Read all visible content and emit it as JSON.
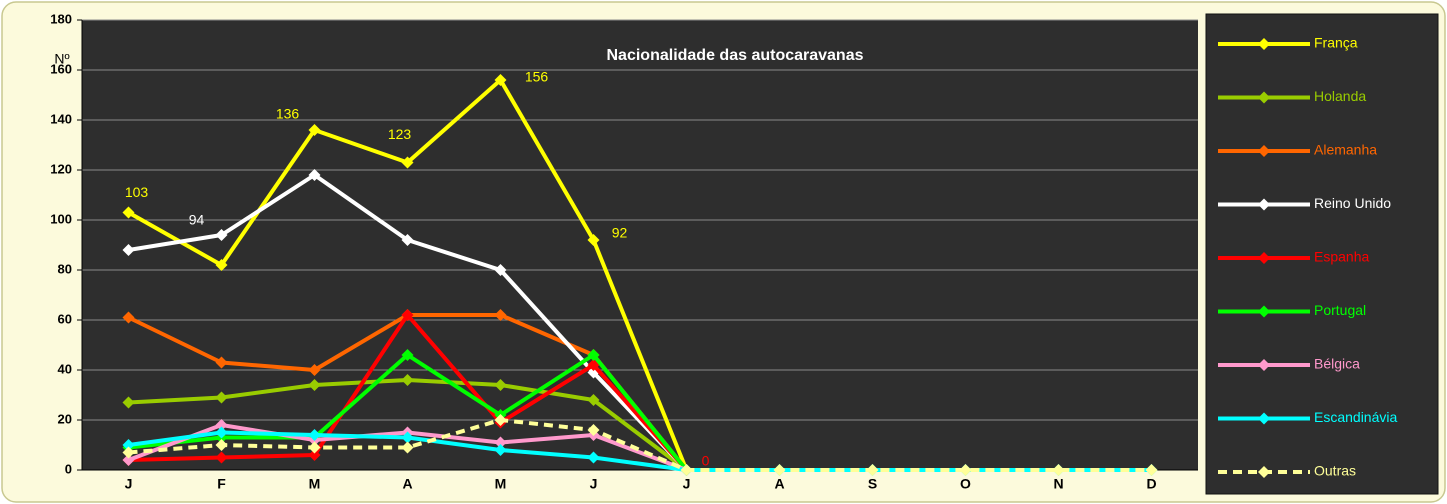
{
  "chart_data": {
    "type": "line",
    "title": "Nacionalidade das autocaravanas",
    "y_label": "Nº",
    "categories": [
      "J",
      "F",
      "M",
      "A",
      "M",
      "J",
      "J",
      "A",
      "S",
      "O",
      "N",
      "D"
    ],
    "ylim": [
      0,
      180
    ],
    "yticks": [
      0,
      20,
      40,
      60,
      80,
      100,
      120,
      140,
      160,
      180
    ],
    "grid": true,
    "legend": "right",
    "series": [
      {
        "name": "França",
        "color": "#ffff00",
        "values": [
          103,
          82,
          136,
          123,
          156,
          92,
          0,
          null,
          null,
          null,
          null,
          null
        ],
        "value_labels": [
          "103",
          null,
          "136",
          "123",
          "156",
          "92",
          null,
          null,
          null,
          null,
          null,
          null
        ]
      },
      {
        "name": "Holanda",
        "color": "#99cc00",
        "values": [
          27,
          29,
          34,
          36,
          34,
          28,
          0,
          null,
          null,
          null,
          null,
          null
        ]
      },
      {
        "name": "Alemanha",
        "color": "#ff6600",
        "values": [
          61,
          43,
          40,
          62,
          62,
          46,
          0,
          null,
          null,
          null,
          null,
          null
        ]
      },
      {
        "name": "Reino Unido",
        "color": "#ffffff",
        "values": [
          88,
          94,
          118,
          92,
          80,
          39,
          0,
          null,
          null,
          null,
          null,
          null
        ],
        "value_labels": [
          null,
          "94",
          null,
          null,
          null,
          null,
          null,
          null,
          null,
          null,
          null,
          null
        ]
      },
      {
        "name": "Espanha",
        "color": "#ff0000",
        "values": [
          4,
          5,
          6,
          62,
          19,
          42,
          0,
          null,
          null,
          null,
          null,
          null
        ],
        "value_labels": [
          null,
          null,
          null,
          null,
          null,
          null,
          "0",
          null,
          null,
          null,
          null,
          null
        ]
      },
      {
        "name": "Portugal",
        "color": "#00ff00",
        "values": [
          9,
          13,
          13,
          46,
          22,
          46,
          0,
          null,
          null,
          null,
          null,
          null
        ]
      },
      {
        "name": "Bélgica",
        "color": "#ff99cc",
        "values": [
          4,
          18,
          12,
          15,
          11,
          14,
          0,
          null,
          null,
          null,
          null,
          null
        ]
      },
      {
        "name": "Escandinávia",
        "color": "#00ffff",
        "values": [
          10,
          15,
          14,
          13,
          8,
          5,
          0,
          0,
          0,
          0,
          0,
          0
        ]
      },
      {
        "name": "Outras",
        "color": "#ffff99",
        "dashed": true,
        "values": [
          7,
          10,
          9,
          9,
          20,
          16,
          0,
          0,
          0,
          0,
          0,
          0
        ]
      }
    ]
  }
}
